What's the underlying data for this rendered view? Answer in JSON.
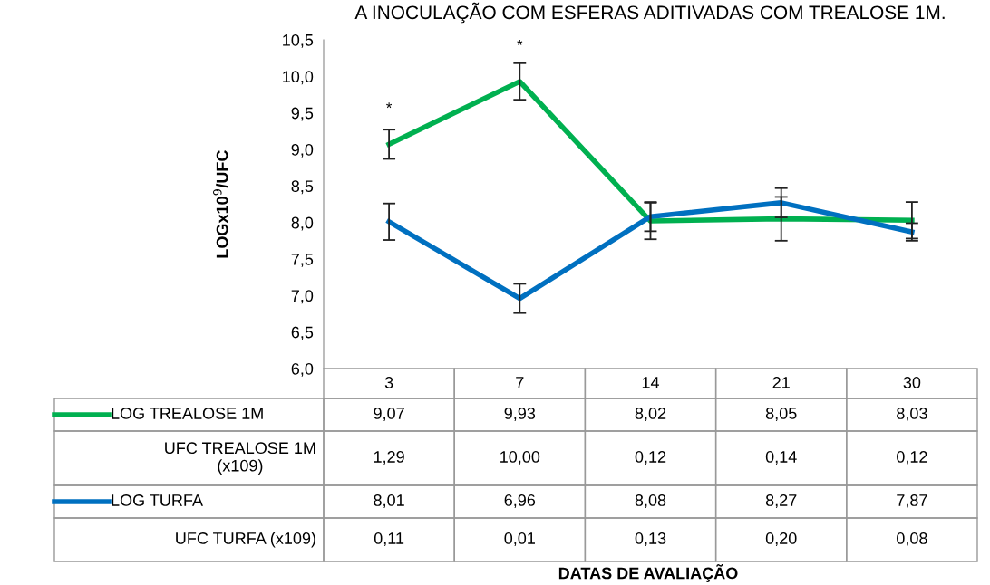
{
  "chart_data": {
    "type": "line",
    "title": "A INOCULAÇÃO COM ESFERAS ADITIVADAS COM TREALOSE 1M.",
    "ylabel": "LOGx10$^{9}$/UFC",
    "categories": [
      "3",
      "7",
      "14",
      "21",
      "30"
    ],
    "series": [
      {
        "name": "LOG TREALOSE 1M",
        "color": "#00b050",
        "values": [
          9.07,
          9.93,
          8.02,
          8.05,
          8.03
        ],
        "value_labels": [
          "9,07",
          "9,93",
          "8,02",
          "8,05",
          "8,03"
        ],
        "errors": [
          0.2,
          0.25,
          0.25,
          0.3,
          0.25
        ]
      },
      {
        "name": "UFC TREALOSE 1M (x109)",
        "type": "other",
        "values": [
          null,
          null,
          null,
          null,
          null
        ],
        "value_labels": [
          "1,29",
          "10,00",
          "0,12",
          "0,14",
          "0,12"
        ]
      },
      {
        "name": "LOG TURFA",
        "color": "#0070c0",
        "values": [
          8.01,
          6.96,
          8.08,
          8.27,
          7.87
        ],
        "value_labels": [
          "8,01",
          "6,96",
          "8,08",
          "8,27",
          "7,87"
        ],
        "errors": [
          0.25,
          0.2,
          0.2,
          0.2,
          0.12
        ]
      },
      {
        "name": "UFC TURFA (x109)",
        "type": "other",
        "values": [
          null,
          null,
          null,
          null,
          null
        ],
        "value_labels": [
          "0,11",
          "0,01",
          "0,13",
          "0,20",
          "0,08"
        ]
      }
    ],
    "ylim": [
      6.0,
      10.5
    ],
    "yticks": [
      {
        "value": 6.0,
        "label": "6,0"
      },
      {
        "value": 6.5,
        "label": "6,5"
      },
      {
        "value": 7.0,
        "label": "7,0"
      },
      {
        "value": 7.5,
        "label": "7,5"
      },
      {
        "value": 8.0,
        "label": "8,0"
      },
      {
        "value": 8.5,
        "label": "8,5"
      },
      {
        "value": 9.0,
        "label": "9,0"
      },
      {
        "value": 9.5,
        "label": "9,5"
      },
      {
        "value": 10.0,
        "label": "10,0"
      },
      {
        "value": 10.5,
        "label": "10,5"
      }
    ],
    "annotations": [
      {
        "text": "*",
        "x": "3",
        "y": 9.07
      },
      {
        "text": "*",
        "x": "7",
        "y": 9.93
      },
      "DATAS DE AVALIAÇÃO"
    ],
    "grid": false,
    "legend": "left",
    "marker": "none",
    "line_style": "solid"
  }
}
